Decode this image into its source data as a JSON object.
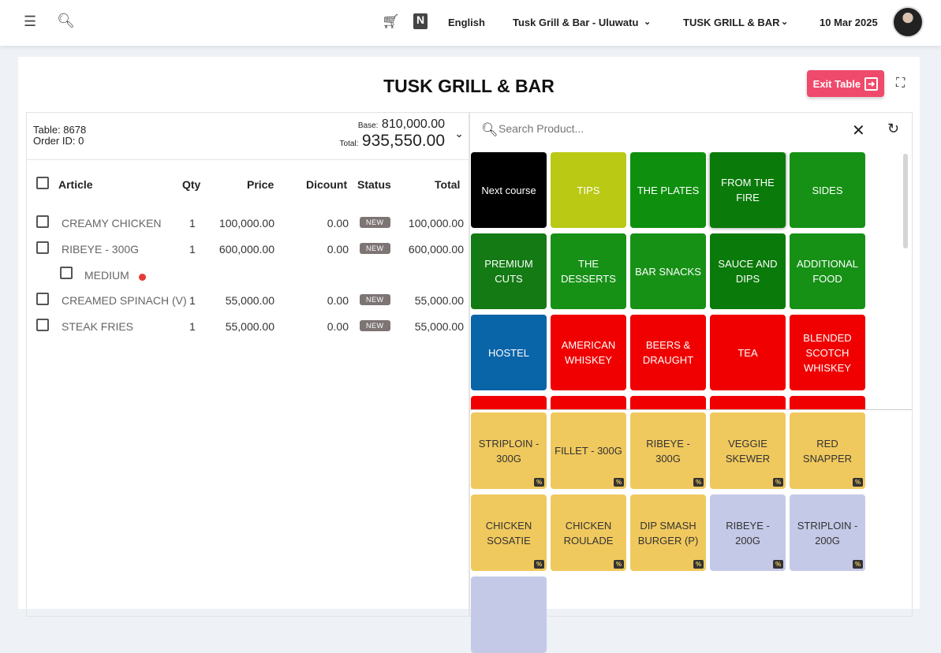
{
  "topbar": {
    "language": "English",
    "location": "Tusk Grill & Bar - Uluwatu",
    "outlet": "TUSK GRILL & BAR",
    "date": "10 Mar 2025"
  },
  "page": {
    "title": "TUSK GRILL & BAR",
    "exit_label": "Exit Table"
  },
  "summary": {
    "table": "Table: 8678",
    "order": "Order ID: 0",
    "base_label": "Base:",
    "base": "810,000.00",
    "total_label": "Total:",
    "total": "935,550.00"
  },
  "columns": [
    "Article",
    "Qty",
    "Price",
    "Dicount",
    "Status",
    "Total"
  ],
  "items": [
    {
      "name": "CREAMY CHICKEN",
      "qty": "1",
      "price": "100,000.00",
      "discount": "0.00",
      "status": "NEW",
      "total": "100,000.00"
    },
    {
      "name": "RIBEYE - 300G",
      "qty": "1",
      "price": "600,000.00",
      "discount": "0.00",
      "status": "NEW",
      "total": "600,000.00",
      "modifier": "MEDIUM"
    },
    {
      "name": "CREAMED SPINACH (V)",
      "qty": "1",
      "price": "55,000.00",
      "discount": "0.00",
      "status": "NEW",
      "total": "55,000.00"
    },
    {
      "name": "STEAK FRIES",
      "qty": "1",
      "price": "55,000.00",
      "discount": "0.00",
      "status": "NEW",
      "total": "55,000.00"
    }
  ],
  "search": {
    "placeholder": "Search Product..."
  },
  "categories": [
    {
      "label": "Next course",
      "color": "#000000"
    },
    {
      "label": "TIPS",
      "color": "#b9c914"
    },
    {
      "label": "THE PLATES",
      "color": "#0e8f0e"
    },
    {
      "label": "FROM THE FIRE",
      "color": "#0a7a0a"
    },
    {
      "label": "SIDES",
      "color": "#169116"
    },
    {
      "label": "PREMIUM CUTS",
      "color": "#147a14"
    },
    {
      "label": "THE DESSERTS",
      "color": "#169116"
    },
    {
      "label": "BAR SNACKS",
      "color": "#169116"
    },
    {
      "label": "SAUCE AND DIPS",
      "color": "#0a7a0a"
    },
    {
      "label": "ADDITIONAL FOOD",
      "color": "#169116"
    },
    {
      "label": "HOSTEL",
      "color": "#0a64a8"
    },
    {
      "label": "AMERICAN WHISKEY",
      "color": "#f00000"
    },
    {
      "label": "BEERS & DRAUGHT",
      "color": "#f00000"
    },
    {
      "label": "TEA",
      "color": "#f00000"
    },
    {
      "label": "BLENDED SCOTCH WHISKEY",
      "color": "#f00000"
    },
    {
      "label": "",
      "color": "#f00000"
    },
    {
      "label": "",
      "color": "#f00000"
    },
    {
      "label": "",
      "color": "#f00000"
    },
    {
      "label": "",
      "color": "#f00000"
    },
    {
      "label": "",
      "color": "#f00000"
    }
  ],
  "products": [
    {
      "label": "STRIPLOIN - 300G",
      "color": "#f0c95e"
    },
    {
      "label": "FILLET - 300G",
      "color": "#f0c95e"
    },
    {
      "label": "RIBEYE - 300G",
      "color": "#f0c95e"
    },
    {
      "label": "VEGGIE SKEWER",
      "color": "#f0c95e"
    },
    {
      "label": "RED SNAPPER",
      "color": "#f0c95e"
    },
    {
      "label": "CHICKEN SOSATIE",
      "color": "#f0c95e"
    },
    {
      "label": "CHICKEN ROULADE",
      "color": "#f0c95e"
    },
    {
      "label": "DIP SMASH BURGER (P)",
      "color": "#f0c95e"
    },
    {
      "label": "RIBEYE - 200G",
      "color": "#c5c9e8"
    },
    {
      "label": "STRIPLOIN - 200G",
      "color": "#c5c9e8"
    },
    {
      "label": "",
      "color": "#c5c9e8"
    }
  ]
}
